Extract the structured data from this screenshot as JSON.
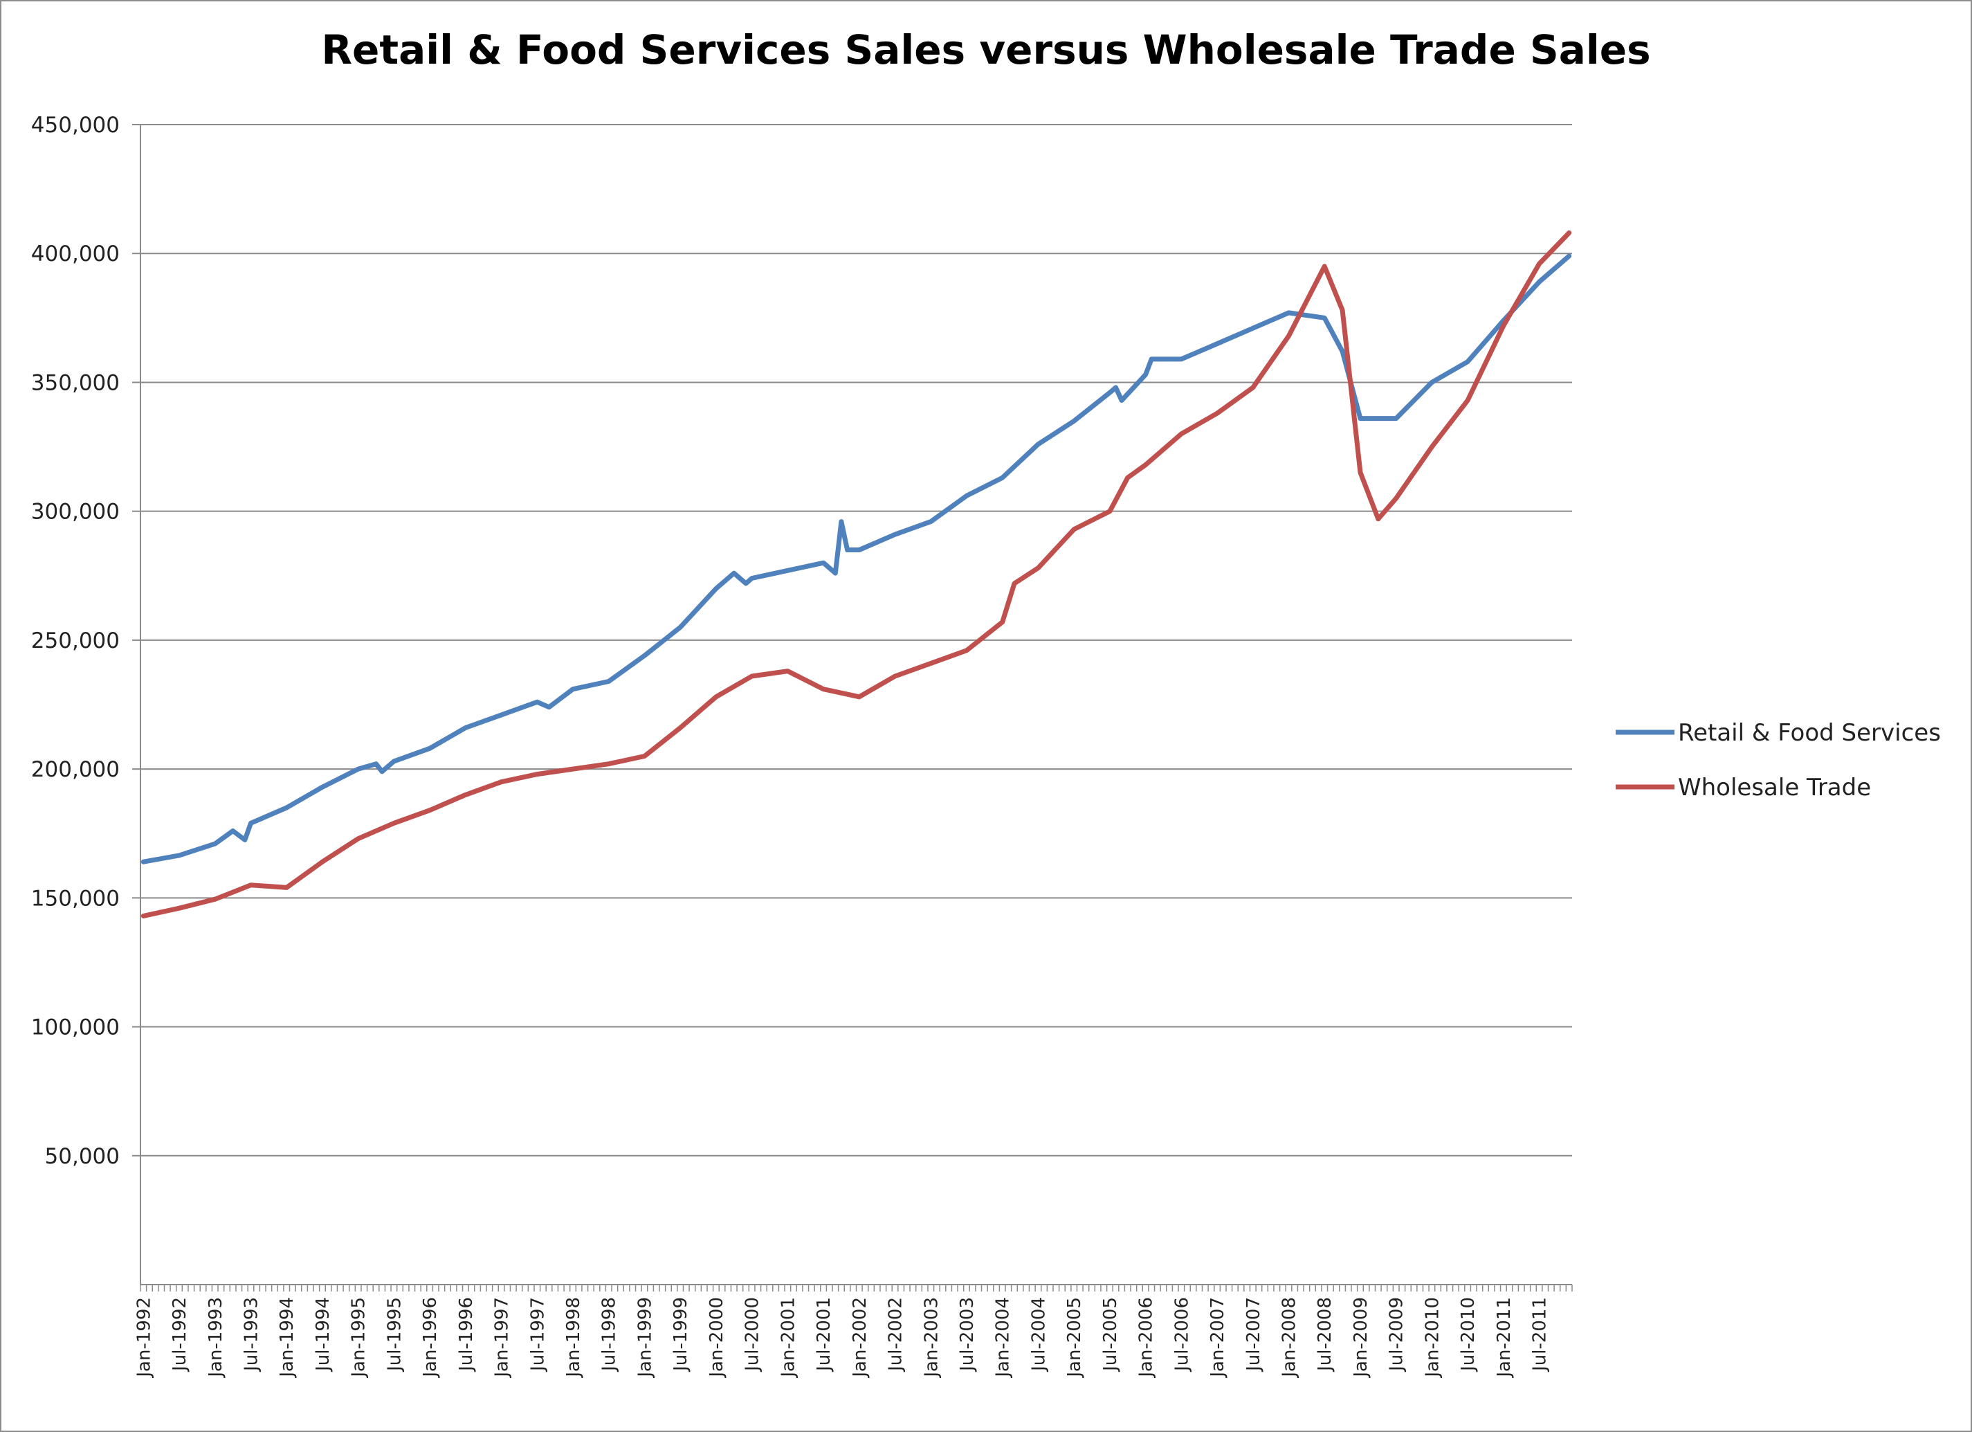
{
  "chart_data": {
    "type": "line",
    "title": "Retail & Food Services Sales versus Wholesale Trade Sales",
    "xlabel": "",
    "ylabel": "",
    "ylim": [
      0,
      450000
    ],
    "y_ticks": [
      50000,
      100000,
      150000,
      200000,
      250000,
      300000,
      350000,
      400000,
      450000
    ],
    "y_tick_labels": [
      "50,000",
      "100,000",
      "150,000",
      "200,000",
      "250,000",
      "300,000",
      "350,000",
      "400,000",
      "450,000"
    ],
    "x_tick_labels": [
      "Jan-1992",
      "Jul-1992",
      "Jan-1993",
      "Jul-1993",
      "Jan-1994",
      "Jul-1994",
      "Jan-1995",
      "Jul-1995",
      "Jan-1996",
      "Jul-1996",
      "Jan-1997",
      "Jul-1997",
      "Jan-1998",
      "Jul-1998",
      "Jan-1999",
      "Jul-1999",
      "Jan-2000",
      "Jul-2000",
      "Jan-2001",
      "Jul-2001",
      "Jan-2002",
      "Jul-2002",
      "Jan-2003",
      "Jul-2003",
      "Jan-2004",
      "Jul-2004",
      "Jan-2005",
      "Jul-2005",
      "Jan-2006",
      "Jul-2006",
      "Jan-2007",
      "Jul-2007",
      "Jan-2008",
      "Jul-2008",
      "Jan-2009",
      "Jul-2009",
      "Jan-2010",
      "Jul-2010",
      "Jan-2011",
      "Jul-2011"
    ],
    "grid": true,
    "legend_position": "right",
    "series": [
      {
        "name": "Retail & Food Services",
        "color": "#4f81bd",
        "points": [
          [
            "Jan-1992",
            164000
          ],
          [
            "Jul-1992",
            166500
          ],
          [
            "Jan-1993",
            171000
          ],
          [
            "Apr-1993",
            176000
          ],
          [
            "Jun-1993",
            172500
          ],
          [
            "Jul-1993",
            179000
          ],
          [
            "Jan-1994",
            185000
          ],
          [
            "Jul-1994",
            193000
          ],
          [
            "Jan-1995",
            200000
          ],
          [
            "Apr-1995",
            202000
          ],
          [
            "May-1995",
            199000
          ],
          [
            "Jul-1995",
            203000
          ],
          [
            "Jan-1996",
            208000
          ],
          [
            "Jul-1996",
            216000
          ],
          [
            "Jan-1997",
            221000
          ],
          [
            "Jul-1997",
            226000
          ],
          [
            "Sep-1997",
            224000
          ],
          [
            "Jan-1998",
            231000
          ],
          [
            "Jul-1998",
            234000
          ],
          [
            "Jan-1999",
            244000
          ],
          [
            "Jul-1999",
            255000
          ],
          [
            "Jan-2000",
            270000
          ],
          [
            "Apr-2000",
            276000
          ],
          [
            "Jun-2000",
            272000
          ],
          [
            "Jul-2000",
            274000
          ],
          [
            "Jan-2001",
            277000
          ],
          [
            "Jul-2001",
            280000
          ],
          [
            "Sep-2001",
            276000
          ],
          [
            "Oct-2001",
            296000
          ],
          [
            "Nov-2001",
            285000
          ],
          [
            "Jan-2002",
            285000
          ],
          [
            "Jul-2002",
            291000
          ],
          [
            "Jan-2003",
            296000
          ],
          [
            "Jul-2003",
            306000
          ],
          [
            "Jan-2004",
            313000
          ],
          [
            "Jul-2004",
            326000
          ],
          [
            "Jan-2005",
            335000
          ],
          [
            "Jul-2005",
            346000
          ],
          [
            "Aug-2005",
            348000
          ],
          [
            "Sep-2005",
            343000
          ],
          [
            "Jan-2006",
            353000
          ],
          [
            "Feb-2006",
            359000
          ],
          [
            "Jul-2006",
            359000
          ],
          [
            "Jan-2007",
            365000
          ],
          [
            "Jul-2007",
            371000
          ],
          [
            "Jan-2008",
            377000
          ],
          [
            "Jul-2008",
            375000
          ],
          [
            "Oct-2008",
            362000
          ],
          [
            "Jan-2009",
            336000
          ],
          [
            "Jul-2009",
            336000
          ],
          [
            "Jan-2010",
            350000
          ],
          [
            "Jul-2010",
            358000
          ],
          [
            "Jan-2011",
            374000
          ],
          [
            "Jul-2011",
            389000
          ],
          [
            "Dec-2011",
            399000
          ]
        ]
      },
      {
        "name": "Wholesale Trade",
        "color": "#c0504d",
        "points": [
          [
            "Jan-1992",
            143000
          ],
          [
            "Jul-1992",
            146000
          ],
          [
            "Jan-1993",
            149500
          ],
          [
            "Jul-1993",
            155000
          ],
          [
            "Jan-1994",
            154000
          ],
          [
            "Jul-1994",
            164000
          ],
          [
            "Jan-1995",
            173000
          ],
          [
            "Jul-1995",
            179000
          ],
          [
            "Jan-1996",
            184000
          ],
          [
            "Jul-1996",
            190000
          ],
          [
            "Jan-1997",
            195000
          ],
          [
            "Jul-1997",
            198000
          ],
          [
            "Jan-1998",
            200000
          ],
          [
            "Jul-1998",
            202000
          ],
          [
            "Jan-1999",
            205000
          ],
          [
            "Jul-1999",
            216000
          ],
          [
            "Jan-2000",
            228000
          ],
          [
            "Jul-2000",
            236000
          ],
          [
            "Jan-2001",
            238000
          ],
          [
            "Jul-2001",
            231000
          ],
          [
            "Jan-2002",
            228000
          ],
          [
            "Jul-2002",
            236000
          ],
          [
            "Jan-2003",
            241000
          ],
          [
            "Jul-2003",
            246000
          ],
          [
            "Jan-2004",
            257000
          ],
          [
            "Mar-2004",
            272000
          ],
          [
            "Jul-2004",
            278000
          ],
          [
            "Jan-2005",
            293000
          ],
          [
            "Jul-2005",
            300000
          ],
          [
            "Oct-2005",
            313000
          ],
          [
            "Jan-2006",
            318000
          ],
          [
            "Jul-2006",
            330000
          ],
          [
            "Jan-2007",
            338000
          ],
          [
            "Jul-2007",
            348000
          ],
          [
            "Jan-2008",
            368000
          ],
          [
            "Jul-2008",
            395000
          ],
          [
            "Oct-2008",
            378000
          ],
          [
            "Jan-2009",
            315000
          ],
          [
            "Apr-2009",
            297000
          ],
          [
            "Jul-2009",
            305000
          ],
          [
            "Jan-2010",
            325000
          ],
          [
            "Jul-2010",
            343000
          ],
          [
            "Jan-2011",
            372000
          ],
          [
            "Jul-2011",
            396000
          ],
          [
            "Dec-2011",
            408000
          ]
        ]
      }
    ]
  }
}
